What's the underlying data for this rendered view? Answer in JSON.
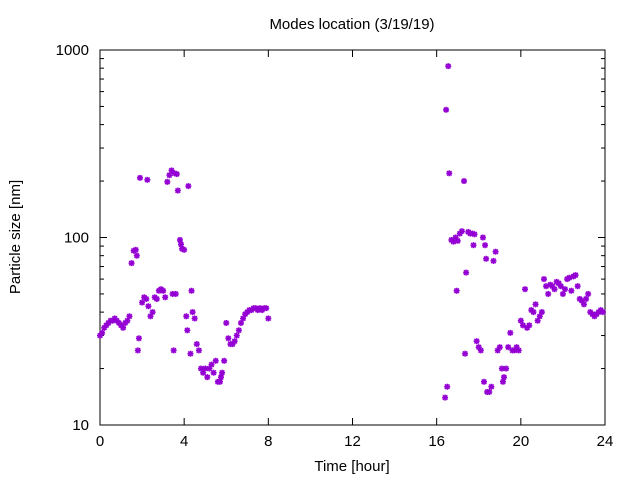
{
  "chart_data": {
    "type": "scatter",
    "title": "Modes location (3/19/19)",
    "xlabel": "Time [hour]",
    "ylabel": "Particle size [nm]",
    "xlim": [
      0,
      24
    ],
    "ylim": [
      10,
      1000
    ],
    "yscale": "log",
    "grid": false,
    "legend": "none",
    "marker_color": "#9400d3",
    "x_ticks": [
      0,
      4,
      8,
      12,
      16,
      20,
      24
    ],
    "x_tick_labels": [
      "0",
      "4",
      "8",
      "12",
      "16",
      "20",
      "24"
    ],
    "y_ticks": [
      10,
      100,
      1000
    ],
    "y_tick_labels": [
      "10",
      "100",
      "1000"
    ],
    "series": [
      {
        "points": [
          [
            0.0,
            30
          ],
          [
            0.1,
            31
          ],
          [
            0.2,
            33
          ],
          [
            0.3,
            34
          ],
          [
            0.4,
            35
          ],
          [
            0.5,
            36
          ],
          [
            0.6,
            36
          ],
          [
            0.7,
            37
          ],
          [
            0.8,
            36
          ],
          [
            0.9,
            35
          ],
          [
            1.0,
            34
          ],
          [
            1.1,
            33
          ],
          [
            1.2,
            35
          ],
          [
            1.3,
            36
          ],
          [
            1.4,
            38
          ],
          [
            1.5,
            73
          ],
          [
            1.6,
            85
          ],
          [
            1.7,
            86
          ],
          [
            1.75,
            80
          ],
          [
            1.8,
            25
          ],
          [
            1.85,
            29
          ],
          [
            1.9,
            208
          ],
          [
            2.0,
            45
          ],
          [
            2.1,
            48
          ],
          [
            2.2,
            47
          ],
          [
            2.25,
            203
          ],
          [
            2.3,
            43
          ],
          [
            2.4,
            38
          ],
          [
            2.5,
            40
          ],
          [
            2.6,
            48
          ],
          [
            2.7,
            47
          ],
          [
            2.8,
            52
          ],
          [
            2.9,
            53
          ],
          [
            3.0,
            52
          ],
          [
            3.1,
            48
          ],
          [
            3.2,
            198
          ],
          [
            3.3,
            215
          ],
          [
            3.4,
            228
          ],
          [
            3.45,
            50
          ],
          [
            3.5,
            25
          ],
          [
            3.55,
            220
          ],
          [
            3.6,
            50
          ],
          [
            3.65,
            218
          ],
          [
            3.7,
            178
          ],
          [
            3.8,
            97
          ],
          [
            3.85,
            92
          ],
          [
            3.9,
            87
          ],
          [
            4.0,
            86
          ],
          [
            4.1,
            38
          ],
          [
            4.15,
            32
          ],
          [
            4.2,
            188
          ],
          [
            4.3,
            24
          ],
          [
            4.35,
            52
          ],
          [
            4.4,
            40
          ],
          [
            4.5,
            37
          ],
          [
            4.6,
            27
          ],
          [
            4.7,
            25
          ],
          [
            4.8,
            20
          ],
          [
            4.9,
            19
          ],
          [
            5.0,
            20
          ],
          [
            5.1,
            18
          ],
          [
            5.2,
            20
          ],
          [
            5.3,
            21
          ],
          [
            5.4,
            19
          ],
          [
            5.5,
            22
          ],
          [
            5.6,
            17
          ],
          [
            5.7,
            17
          ],
          [
            5.75,
            18
          ],
          [
            5.8,
            19
          ],
          [
            5.9,
            22
          ],
          [
            6.0,
            35
          ],
          [
            6.1,
            29
          ],
          [
            6.2,
            27
          ],
          [
            6.3,
            27
          ],
          [
            6.4,
            28
          ],
          [
            6.5,
            30
          ],
          [
            6.6,
            32
          ],
          [
            6.7,
            35
          ],
          [
            6.8,
            37
          ],
          [
            6.9,
            39
          ],
          [
            7.0,
            40
          ],
          [
            7.1,
            41
          ],
          [
            7.2,
            41
          ],
          [
            7.3,
            42
          ],
          [
            7.4,
            42
          ],
          [
            7.5,
            41
          ],
          [
            7.6,
            42
          ],
          [
            7.7,
            41
          ],
          [
            7.8,
            42
          ],
          [
            7.9,
            42
          ],
          [
            8.0,
            37
          ],
          [
            16.4,
            14
          ],
          [
            16.45,
            480
          ],
          [
            16.5,
            16
          ],
          [
            16.55,
            820
          ],
          [
            16.6,
            220
          ],
          [
            16.7,
            97
          ],
          [
            16.8,
            95
          ],
          [
            16.9,
            100
          ],
          [
            16.95,
            52
          ],
          [
            17.0,
            96
          ],
          [
            17.1,
            105
          ],
          [
            17.2,
            108
          ],
          [
            17.3,
            200
          ],
          [
            17.35,
            24
          ],
          [
            17.4,
            65
          ],
          [
            17.5,
            107
          ],
          [
            17.6,
            105
          ],
          [
            17.7,
            105
          ],
          [
            17.75,
            91
          ],
          [
            17.8,
            104
          ],
          [
            17.9,
            28
          ],
          [
            18.0,
            26
          ],
          [
            18.1,
            25
          ],
          [
            18.2,
            100
          ],
          [
            18.25,
            17
          ],
          [
            18.3,
            91
          ],
          [
            18.35,
            77
          ],
          [
            18.4,
            15
          ],
          [
            18.5,
            15
          ],
          [
            18.6,
            16
          ],
          [
            18.7,
            75
          ],
          [
            18.8,
            84
          ],
          [
            18.9,
            25
          ],
          [
            19.0,
            26
          ],
          [
            19.1,
            20
          ],
          [
            19.15,
            17
          ],
          [
            19.2,
            18
          ],
          [
            19.3,
            20
          ],
          [
            19.4,
            26
          ],
          [
            19.5,
            31
          ],
          [
            19.6,
            25
          ],
          [
            19.7,
            25
          ],
          [
            19.8,
            26
          ],
          [
            19.9,
            25
          ],
          [
            20.0,
            36
          ],
          [
            20.1,
            34
          ],
          [
            20.2,
            53
          ],
          [
            20.3,
            33
          ],
          [
            20.4,
            34
          ],
          [
            20.5,
            41
          ],
          [
            20.6,
            40
          ],
          [
            20.7,
            44
          ],
          [
            20.8,
            36
          ],
          [
            20.9,
            38
          ],
          [
            21.0,
            40
          ],
          [
            21.1,
            60
          ],
          [
            21.2,
            55
          ],
          [
            21.3,
            50
          ],
          [
            21.4,
            56
          ],
          [
            21.5,
            55
          ],
          [
            21.6,
            53
          ],
          [
            21.7,
            58
          ],
          [
            21.8,
            57
          ],
          [
            21.9,
            55
          ],
          [
            22.0,
            50
          ],
          [
            22.1,
            53
          ],
          [
            22.2,
            60
          ],
          [
            22.3,
            61
          ],
          [
            22.4,
            52
          ],
          [
            22.5,
            62
          ],
          [
            22.6,
            63
          ],
          [
            22.7,
            55
          ],
          [
            22.8,
            47
          ],
          [
            22.9,
            46
          ],
          [
            23.0,
            44
          ],
          [
            23.1,
            47
          ],
          [
            23.2,
            50
          ],
          [
            23.3,
            40
          ],
          [
            23.4,
            39
          ],
          [
            23.5,
            38
          ],
          [
            23.6,
            39
          ],
          [
            23.7,
            40
          ],
          [
            23.8,
            41
          ],
          [
            23.9,
            40
          ]
        ]
      }
    ]
  }
}
